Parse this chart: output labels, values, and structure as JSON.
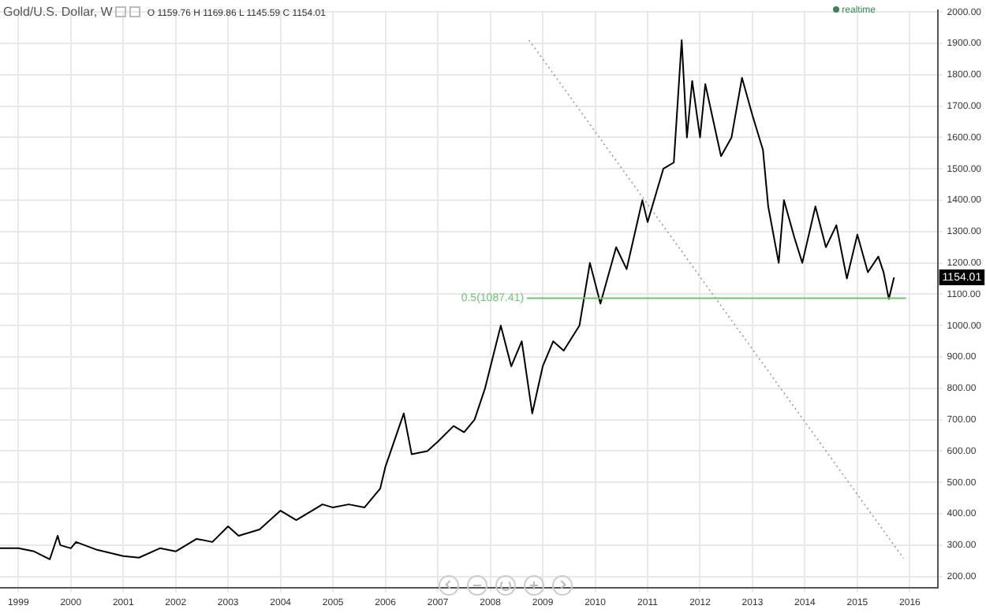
{
  "chart_data": {
    "type": "line",
    "title": "Gold/U.S. Dollar, W",
    "annotations": [
      "O 1159.76 H 1169.86 L 1145.59 C 1154.01",
      "realtime",
      {
        "text": "1154.01",
        "y": 1154.01
      }
    ],
    "series": [
      {
        "color": "#000000",
        "x": [
          1998.65,
          1999.0,
          1999.3,
          1999.6,
          1999.75,
          1999.8,
          2000.0,
          2000.1,
          2000.5,
          2001.0,
          2001.3,
          2001.7,
          2002.0,
          2002.4,
          2002.7,
          2003.0,
          2003.2,
          2003.6,
          2004.0,
          2004.3,
          2004.8,
          2005.0,
          2005.3,
          2005.6,
          2005.9,
          2006.0,
          2006.35,
          2006.5,
          2006.8,
          2007.0,
          2007.3,
          2007.5,
          2007.7,
          2007.9,
          2008.2,
          2008.4,
          2008.6,
          2008.8,
          2009.0,
          2009.2,
          2009.4,
          2009.7,
          2009.9,
          2010.1,
          2010.4,
          2010.6,
          2010.9,
          2011.0,
          2011.3,
          2011.5,
          2011.65,
          2011.75,
          2011.85,
          2012.0,
          2012.1,
          2012.4,
          2012.6,
          2012.8,
          2013.0,
          2013.2,
          2013.3,
          2013.5,
          2013.6,
          2013.8,
          2013.95,
          2014.2,
          2014.4,
          2014.6,
          2014.8,
          2015.0,
          2015.2,
          2015.4,
          2015.5,
          2015.6,
          2015.7
        ],
        "values": [
          290,
          290,
          280,
          255,
          330,
          300,
          290,
          310,
          285,
          265,
          260,
          290,
          280,
          320,
          310,
          360,
          330,
          350,
          410,
          380,
          430,
          420,
          430,
          420,
          480,
          550,
          720,
          590,
          600,
          630,
          680,
          660,
          700,
          800,
          1000,
          870,
          950,
          720,
          870,
          950,
          920,
          1000,
          1200,
          1070,
          1250,
          1180,
          1400,
          1330,
          1500,
          1520,
          1910,
          1600,
          1780,
          1600,
          1770,
          1540,
          1600,
          1790,
          1670,
          1560,
          1380,
          1200,
          1400,
          1280,
          1200,
          1380,
          1250,
          1320,
          1150,
          1290,
          1170,
          1220,
          1170,
          1085,
          1154
        ]
      },
      {
        "color": "#999999",
        "line_style": "dotted",
        "x": [
          2008.74,
          2015.88
        ],
        "values": [
          1910,
          258
        ]
      }
    ],
    "ref_lines": [
      {
        "axis": "y",
        "value": 1087.41,
        "label": "0.5(1087.41)",
        "color": "#66cc66"
      }
    ],
    "xlim": [
      1998.65,
      2016.53
    ],
    "xticks": [
      1999,
      2000,
      2001,
      2002,
      2003,
      2004,
      2005,
      2006,
      2007,
      2008,
      2009,
      2010,
      2011,
      2012,
      2013,
      2014,
      2015,
      2016
    ],
    "ylim": [
      165,
      2005
    ],
    "yticks": [
      {
        "value": 200,
        "label": "200.00"
      },
      {
        "value": 300,
        "label": "300.00"
      },
      {
        "value": 400,
        "label": "400.00"
      },
      {
        "value": 500,
        "label": "500.00"
      },
      {
        "value": 600,
        "label": "600.00"
      },
      {
        "value": 700,
        "label": "700.00"
      },
      {
        "value": 800,
        "label": "800.00"
      },
      {
        "value": 900,
        "label": "900.00"
      },
      {
        "value": 1000,
        "label": "1000.00"
      },
      {
        "value": 1100,
        "label": "1100.00"
      },
      {
        "value": 1200,
        "label": "1200.00"
      },
      {
        "value": 1300,
        "label": "1300.00"
      },
      {
        "value": 1400,
        "label": "1400.00"
      },
      {
        "value": 1500,
        "label": "1500.00"
      },
      {
        "value": 1600,
        "label": "1600.00"
      },
      {
        "value": 1700,
        "label": "1700.00"
      },
      {
        "value": 1800,
        "label": "1800.00"
      },
      {
        "value": 1900,
        "label": "1900.00"
      },
      {
        "value": 2000,
        "label": "2000.00"
      }
    ],
    "grid": true,
    "legend": false,
    "marker": "none"
  }
}
